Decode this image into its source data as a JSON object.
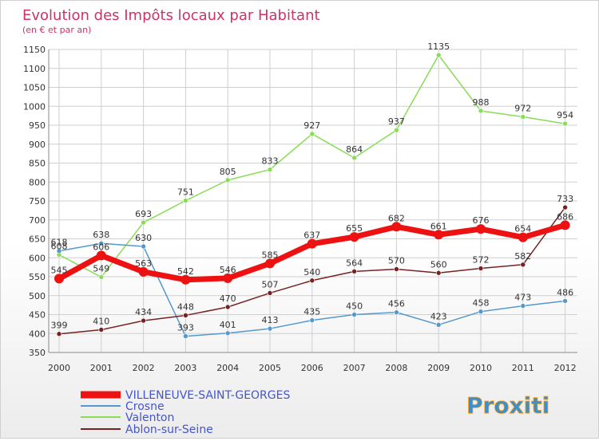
{
  "chart_data": {
    "type": "line",
    "title": "Evolution des Impôts locaux par Habitant",
    "subtitle": "(en € et par an)",
    "x": [
      "2000",
      "2001",
      "2002",
      "2003",
      "2004",
      "2005",
      "2006",
      "2007",
      "2008",
      "2009",
      "2010",
      "2011",
      "2012"
    ],
    "ylim": [
      350,
      1150
    ],
    "yticks": [
      350,
      400,
      450,
      500,
      550,
      600,
      650,
      700,
      750,
      800,
      850,
      900,
      950,
      1000,
      1050,
      1100,
      1150
    ],
    "grid": true,
    "legend_position": "bottom-left",
    "series": [
      {
        "name": "VILLENEUVE-SAINT-GEORGES",
        "color": "#ee1111",
        "values": [
          545,
          606,
          563,
          542,
          546,
          585,
          637,
          655,
          682,
          661,
          676,
          654,
          686
        ]
      },
      {
        "name": "Crosne",
        "color": "#5599cc",
        "values": [
          618,
          638,
          630,
          393,
          401,
          413,
          435,
          450,
          456,
          423,
          458,
          473,
          486
        ]
      },
      {
        "name": "Valenton",
        "color": "#88dd55",
        "values": [
          608,
          549,
          693,
          751,
          805,
          833,
          927,
          864,
          937,
          1135,
          988,
          972,
          954
        ]
      },
      {
        "name": "Ablon-sur-Seine",
        "color": "#772222",
        "values": [
          399,
          410,
          434,
          448,
          470,
          507,
          540,
          564,
          570,
          560,
          572,
          582,
          733
        ]
      }
    ],
    "logo": "Proxiti"
  }
}
